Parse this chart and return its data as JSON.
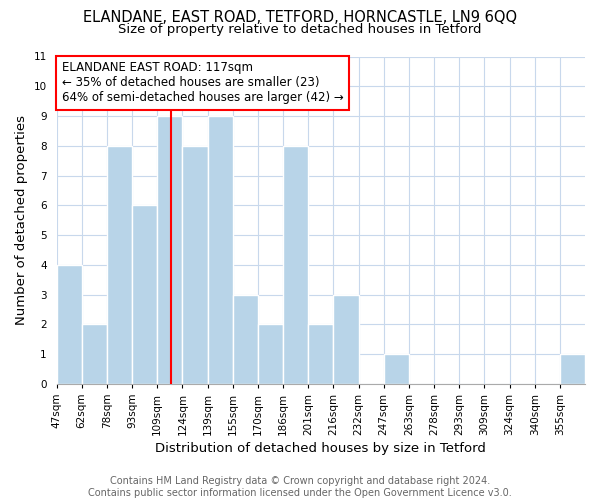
{
  "title_line1": "ELANDANE, EAST ROAD, TETFORD, HORNCASTLE, LN9 6QQ",
  "title_line2": "Size of property relative to detached houses in Tetford",
  "xlabel": "Distribution of detached houses by size in Tetford",
  "ylabel": "Number of detached properties",
  "bar_labels": [
    "47sqm",
    "62sqm",
    "78sqm",
    "93sqm",
    "109sqm",
    "124sqm",
    "139sqm",
    "155sqm",
    "170sqm",
    "186sqm",
    "201sqm",
    "216sqm",
    "232sqm",
    "247sqm",
    "263sqm",
    "278sqm",
    "293sqm",
    "309sqm",
    "324sqm",
    "340sqm",
    "355sqm"
  ],
  "bar_heights": [
    4,
    2,
    8,
    6,
    9,
    8,
    9,
    3,
    2,
    8,
    2,
    3,
    0,
    1,
    0,
    0,
    0,
    0,
    0,
    0,
    1
  ],
  "bar_color": "#b8d4e8",
  "bar_edge_color": "#ffffff",
  "grid_color": "#c8d8ec",
  "annotation_line_color": "red",
  "ylim": [
    0,
    11
  ],
  "yticks": [
    0,
    1,
    2,
    3,
    4,
    5,
    6,
    7,
    8,
    9,
    10,
    11
  ],
  "annotation_text_line1": "ELANDANE EAST ROAD: 117sqm",
  "annotation_text_line2": "← 35% of detached houses are smaller (23)",
  "annotation_text_line3": "64% of semi-detached houses are larger (42) →",
  "footer_line1": "Contains HM Land Registry data © Crown copyright and database right 2024.",
  "footer_line2": "Contains public sector information licensed under the Open Government Licence v3.0.",
  "title_fontsize": 10.5,
  "subtitle_fontsize": 9.5,
  "axis_label_fontsize": 9.5,
  "tick_fontsize": 7.5,
  "annotation_fontsize": 8.5,
  "footer_fontsize": 7.0
}
